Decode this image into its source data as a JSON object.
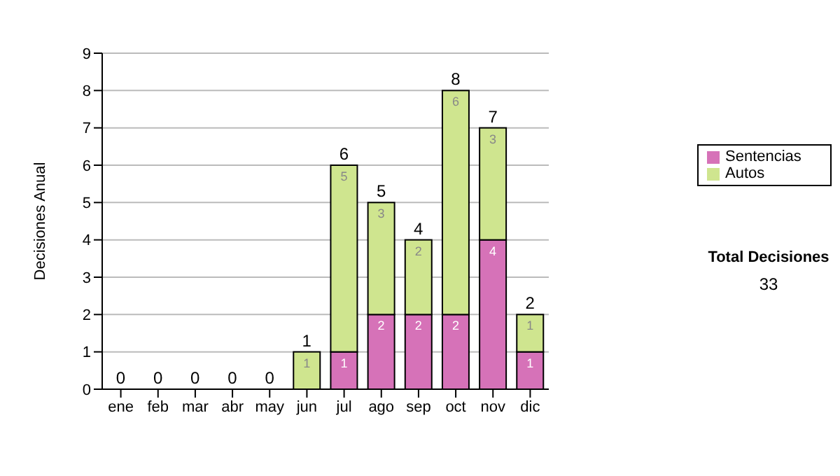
{
  "chart_data": {
    "type": "bar",
    "stacked": true,
    "ylabel": "Decisiones Anual",
    "categories": [
      "ene",
      "feb",
      "mar",
      "abr",
      "may",
      "jun",
      "jul",
      "ago",
      "sep",
      "oct",
      "nov",
      "dic"
    ],
    "series": [
      {
        "name": "Sentencias",
        "color": "#d672b8",
        "values": [
          0,
          0,
          0,
          0,
          0,
          0,
          1,
          2,
          2,
          2,
          4,
          1
        ],
        "value_labels": [
          null,
          null,
          null,
          null,
          null,
          null,
          "1",
          "2",
          "2",
          "2",
          "4",
          "1"
        ]
      },
      {
        "name": "Autos",
        "color": "#cfe58f",
        "values": [
          0,
          0,
          0,
          0,
          0,
          1,
          5,
          3,
          2,
          6,
          3,
          1
        ],
        "value_labels": [
          null,
          null,
          null,
          null,
          null,
          "1",
          "5",
          "3",
          "2",
          "6",
          "3",
          "1"
        ]
      }
    ],
    "totals": [
      "0",
      "0",
      "0",
      "0",
      "0",
      "1",
      "6",
      "5",
      "4",
      "8",
      "7",
      "2"
    ],
    "ylim": [
      0,
      9
    ],
    "yticks": [
      0,
      1,
      2,
      3,
      4,
      5,
      6,
      7,
      8,
      9
    ],
    "grid": "y",
    "legend": "right",
    "annotations": [
      "Total Decisiones",
      "33"
    ]
  }
}
